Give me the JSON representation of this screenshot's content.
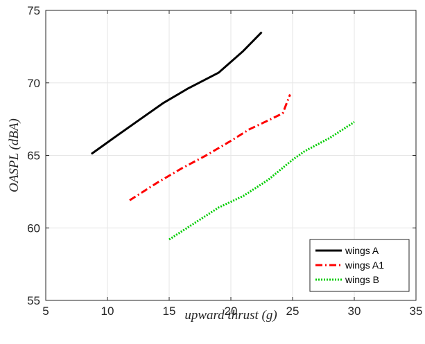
{
  "chart_data": {
    "type": "line",
    "title": "",
    "xlabel": "upward thrust   (g)",
    "ylabel": "OASPL   (dBA)",
    "xlim": [
      5,
      35
    ],
    "ylim": [
      55,
      75
    ],
    "xticks": [
      5,
      10,
      15,
      20,
      25,
      30,
      35
    ],
    "yticks": [
      55,
      60,
      65,
      70,
      75
    ],
    "grid": true,
    "legend_position": "bottom-right",
    "series": [
      {
        "name": "wings A",
        "color": "#000000",
        "style": "solid",
        "x": [
          8.7,
          10.5,
          12.5,
          14.5,
          16.5,
          19.0,
          21.0,
          22.5
        ],
        "y": [
          65.1,
          66.2,
          67.4,
          68.6,
          69.6,
          70.7,
          72.2,
          73.5
        ]
      },
      {
        "name": "wings A1",
        "color": "#ff0000",
        "style": "dashdot",
        "x": [
          11.8,
          14.0,
          16.0,
          18.0,
          20.0,
          21.5,
          23.0,
          24.2,
          24.8
        ],
        "y": [
          61.9,
          63.1,
          64.1,
          65.0,
          66.0,
          66.8,
          67.4,
          67.9,
          69.2
        ]
      },
      {
        "name": "wings B",
        "color": "#00cc00",
        "style": "dotted",
        "x": [
          15.0,
          17.0,
          19.0,
          21.0,
          23.0,
          25.0,
          26.0,
          28.0,
          30.0
        ],
        "y": [
          59.2,
          60.3,
          61.4,
          62.2,
          63.3,
          64.7,
          65.3,
          66.2,
          67.3
        ]
      }
    ]
  }
}
